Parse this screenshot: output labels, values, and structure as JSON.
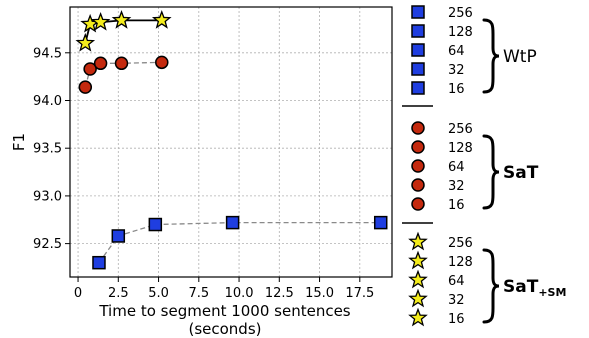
{
  "chart_data": {
    "type": "line",
    "xlabel": "Time to segment 1000 sentences",
    "xlabel_sub": "(seconds)",
    "ylabel": "F1",
    "xlim": [
      -0.5,
      19.5
    ],
    "ylim": [
      92.15,
      94.98
    ],
    "xticks": [
      0,
      2.5,
      5,
      7.5,
      10,
      12.5,
      15,
      17.5
    ],
    "xtick_labels": [
      "0",
      "2.5",
      "5.0",
      "7.5",
      "10.0",
      "12.5",
      "15.0",
      "17.5"
    ],
    "yticks": [
      92.5,
      93.0,
      93.5,
      94.0,
      94.5
    ],
    "ytick_labels": [
      "92.5",
      "93.0",
      "93.5",
      "94.0",
      "94.5"
    ],
    "grid": true,
    "legend_position": "right",
    "series": [
      {
        "name": "WtP",
        "marker": "square",
        "line_style": "dashed",
        "color": "#1f3ee0",
        "line_color": "#8a8a8a",
        "labels": [
          "16",
          "32",
          "64",
          "128",
          "256"
        ],
        "x": [
          1.3,
          2.5,
          4.8,
          9.6,
          18.8
        ],
        "y": [
          92.3,
          92.58,
          92.7,
          92.72,
          92.72
        ]
      },
      {
        "name": "SaT",
        "marker": "circle",
        "line_style": "dashed",
        "color": "#c4290e",
        "line_color": "#8a8a8a",
        "labels": [
          "16",
          "32",
          "64",
          "128",
          "256"
        ],
        "x": [
          0.45,
          0.75,
          1.4,
          2.7,
          5.2
        ],
        "y": [
          94.14,
          94.33,
          94.39,
          94.39,
          94.4
        ]
      },
      {
        "name": "SaT",
        "name_subscript": "+SM",
        "marker": "star",
        "line_style": "solid",
        "color": "#f4ec1c",
        "line_color": "#000000",
        "labels": [
          "16",
          "32",
          "64",
          "128",
          "256"
        ],
        "x": [
          0.45,
          0.75,
          1.4,
          2.7,
          5.2
        ],
        "y": [
          94.6,
          94.8,
          94.82,
          94.84,
          94.84
        ]
      }
    ]
  }
}
